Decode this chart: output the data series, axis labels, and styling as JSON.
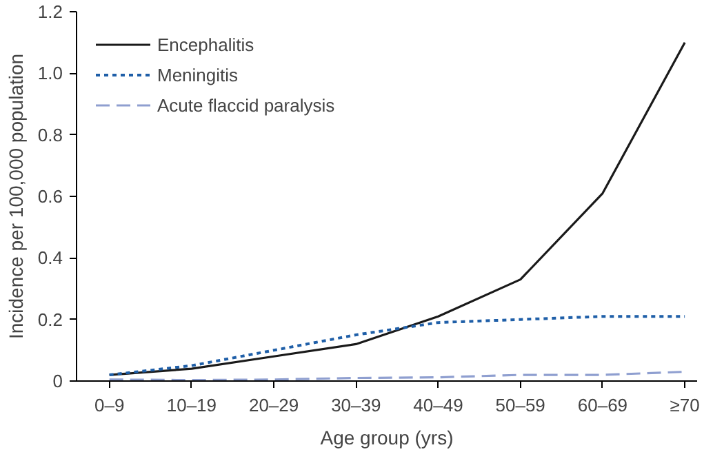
{
  "chart_data": {
    "type": "line",
    "xlabel": "Age group (yrs)",
    "ylabel": "Incidence per 100,000 population",
    "categories": [
      "0–9",
      "10–19",
      "20–29",
      "30–39",
      "40–49",
      "50–59",
      "60–69",
      "≥70"
    ],
    "series": [
      {
        "name": "Encephalitis",
        "color": "#1a1a1a",
        "line_style": "solid",
        "values": [
          0.02,
          0.04,
          0.08,
          0.12,
          0.21,
          0.33,
          0.61,
          1.1
        ]
      },
      {
        "name": "Meningitis",
        "color": "#1f5fa8",
        "line_style": "dotted",
        "values": [
          0.02,
          0.05,
          0.1,
          0.15,
          0.19,
          0.2,
          0.21,
          0.21
        ]
      },
      {
        "name": "Acute flaccid paralysis",
        "color": "#8f9fd0",
        "line_style": "dashed",
        "values": [
          0.005,
          0.003,
          0.005,
          0.01,
          0.012,
          0.02,
          0.02,
          0.03
        ]
      }
    ],
    "ylim": [
      0,
      1.2
    ],
    "yticks": [
      0,
      0.2,
      0.4,
      0.6,
      0.8,
      {
        "value": 1.0,
        "label": "1.0"
      },
      1.2
    ],
    "grid": false,
    "legend": "top left",
    "marker": "none"
  }
}
